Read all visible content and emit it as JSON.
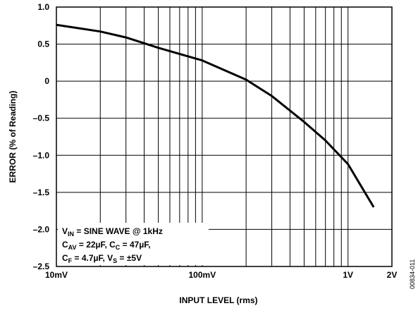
{
  "chart_data": {
    "type": "line",
    "xlabel": "INPUT LEVEL (rms)",
    "ylabel": "ERROR (% of Reading)",
    "figure_id": "00834-011",
    "x_scale": "log",
    "xlim": [
      0.01,
      2
    ],
    "ylim": [
      -2.5,
      1.0
    ],
    "xticks": [
      {
        "value": 0.01,
        "label": "10mV"
      },
      {
        "value": 0.1,
        "label": "100mV"
      },
      {
        "value": 1,
        "label": "1V"
      },
      {
        "value": 2,
        "label": "2V"
      }
    ],
    "x_minor_ticks": [
      0.02,
      0.03,
      0.04,
      0.05,
      0.06,
      0.07,
      0.08,
      0.09,
      0.2,
      0.3,
      0.4,
      0.5,
      0.6,
      0.7,
      0.8,
      0.9
    ],
    "yticks": [
      {
        "value": 1.0,
        "label": "1.0"
      },
      {
        "value": 0.5,
        "label": "0.5"
      },
      0,
      {
        "value": -0.5,
        "label": "–0.5"
      },
      {
        "value": -1.0,
        "label": "–1.0"
      },
      {
        "value": -1.5,
        "label": "–1.5"
      },
      {
        "value": -2.0,
        "label": "–2.0"
      },
      {
        "value": -2.5,
        "label": "–2.5"
      }
    ],
    "grid": true,
    "series": [
      {
        "color": "#000000",
        "x": [
          0.01,
          0.02,
          0.03,
          0.05,
          0.1,
          0.2,
          0.3,
          0.5,
          0.7,
          1.0,
          1.5
        ],
        "values": [
          0.76,
          0.67,
          0.59,
          0.45,
          0.28,
          0.02,
          -0.2,
          -0.55,
          -0.8,
          -1.12,
          -1.7
        ]
      }
    ],
    "annotation": [
      [
        {
          "t": "V"
        },
        {
          "sub": "IN"
        },
        {
          "t": " = SINE WAVE @ 1kHz"
        }
      ],
      [
        {
          "t": "C"
        },
        {
          "sub": "AV"
        },
        {
          "t": " = 22µF, C"
        },
        {
          "sub": "C"
        },
        {
          "t": " = 47µF,"
        }
      ],
      [
        {
          "t": "C"
        },
        {
          "sub": "F"
        },
        {
          "t": " = 4.7µF, V"
        },
        {
          "sub": "S"
        },
        {
          "t": " = ±5V"
        }
      ]
    ]
  }
}
